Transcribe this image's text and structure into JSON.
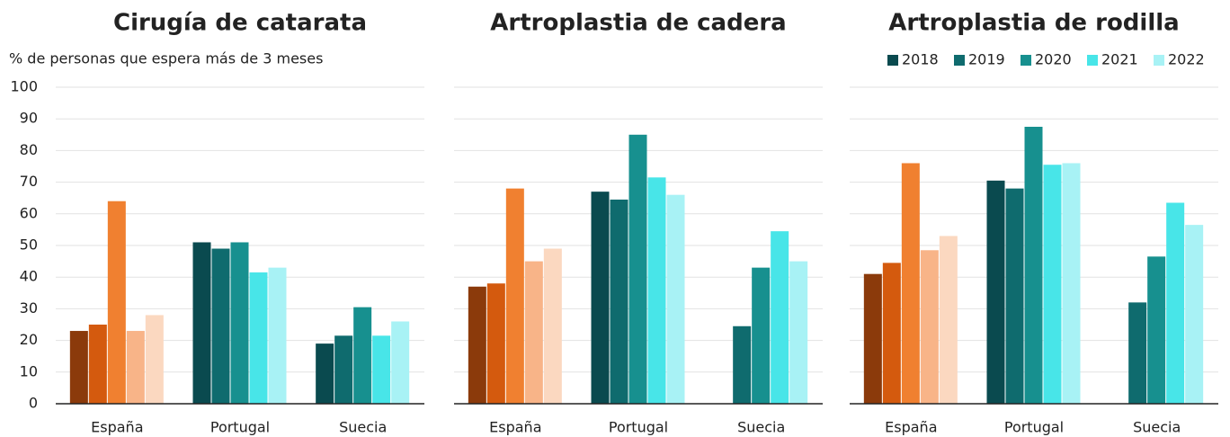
{
  "chart_data": [
    {
      "type": "bar",
      "title": "Cirugía de catarata",
      "ylabel": "% de personas que espera más de 3 meses",
      "categories": [
        "España",
        "Portugal",
        "Suecia"
      ],
      "ylim": [
        0,
        100
      ],
      "yticks": [
        0,
        10,
        20,
        30,
        40,
        50,
        60,
        70,
        80,
        90,
        100
      ],
      "grid": true,
      "show_ytick_labels": true,
      "series": [
        {
          "name": "2018",
          "color": "#0a4a4f",
          "colors": [
            "#8b3a0b",
            "#0a4a4f",
            "#0a4a4f"
          ],
          "values": [
            23,
            51,
            19
          ]
        },
        {
          "name": "2019",
          "color": "#0f6b6e",
          "colors": [
            "#d45a0e",
            "#0f6b6e",
            "#0f6b6e"
          ],
          "values": [
            25,
            49,
            21.5
          ]
        },
        {
          "name": "2020",
          "color": "#17908f",
          "colors": [
            "#f08030",
            "#17908f",
            "#17908f"
          ],
          "values": [
            64,
            51,
            30.5
          ]
        },
        {
          "name": "2021",
          "color": "#48e5e8",
          "colors": [
            "#f8b488",
            "#48e5e8",
            "#48e5e8"
          ],
          "values": [
            23,
            41.5,
            21.5
          ]
        },
        {
          "name": "2022",
          "color": "#a8f2f5",
          "colors": [
            "#fbd8c0",
            "#a8f2f5",
            "#a8f2f5"
          ],
          "values": [
            28,
            43,
            26
          ]
        }
      ]
    },
    {
      "type": "bar",
      "title": "Artroplastia de cadera",
      "categories": [
        "España",
        "Portugal",
        "Suecia"
      ],
      "ylim": [
        0,
        100
      ],
      "yticks": [
        0,
        10,
        20,
        30,
        40,
        50,
        60,
        70,
        80,
        90,
        100
      ],
      "grid": true,
      "show_ytick_labels": false,
      "series": [
        {
          "name": "2018",
          "color": "#0a4a4f",
          "colors": [
            "#8b3a0b",
            "#0a4a4f",
            "#0a4a4f"
          ],
          "values": [
            37,
            67,
            null
          ]
        },
        {
          "name": "2019",
          "color": "#0f6b6e",
          "colors": [
            "#d45a0e",
            "#0f6b6e",
            "#0f6b6e"
          ],
          "values": [
            38,
            64.5,
            24.5
          ]
        },
        {
          "name": "2020",
          "color": "#17908f",
          "colors": [
            "#f08030",
            "#17908f",
            "#17908f"
          ],
          "values": [
            68,
            85,
            43
          ]
        },
        {
          "name": "2021",
          "color": "#48e5e8",
          "colors": [
            "#f8b488",
            "#48e5e8",
            "#48e5e8"
          ],
          "values": [
            45,
            71.5,
            54.5
          ]
        },
        {
          "name": "2022",
          "color": "#a8f2f5",
          "colors": [
            "#fbd8c0",
            "#a8f2f5",
            "#a8f2f5"
          ],
          "values": [
            49,
            66,
            45
          ]
        }
      ]
    },
    {
      "type": "bar",
      "title": "Artroplastia de rodilla",
      "legend": "top-right",
      "categories": [
        "España",
        "Portugal",
        "Suecia"
      ],
      "ylim": [
        0,
        100
      ],
      "yticks": [
        0,
        10,
        20,
        30,
        40,
        50,
        60,
        70,
        80,
        90,
        100
      ],
      "grid": true,
      "show_ytick_labels": false,
      "series": [
        {
          "name": "2018",
          "color": "#0a4a4f",
          "colors": [
            "#8b3a0b",
            "#0a4a4f",
            "#0a4a4f"
          ],
          "values": [
            41,
            70.5,
            null
          ]
        },
        {
          "name": "2019",
          "color": "#0f6b6e",
          "colors": [
            "#d45a0e",
            "#0f6b6e",
            "#0f6b6e"
          ],
          "values": [
            44.5,
            68,
            32
          ]
        },
        {
          "name": "2020",
          "color": "#17908f",
          "colors": [
            "#f08030",
            "#17908f",
            "#17908f"
          ],
          "values": [
            76,
            87.5,
            46.5
          ]
        },
        {
          "name": "2021",
          "color": "#48e5e8",
          "colors": [
            "#f8b488",
            "#48e5e8",
            "#48e5e8"
          ],
          "values": [
            48.5,
            75.5,
            63.5
          ]
        },
        {
          "name": "2022",
          "color": "#a8f2f5",
          "colors": [
            "#fbd8c0",
            "#a8f2f5",
            "#a8f2f5"
          ],
          "values": [
            53,
            76,
            56.5
          ]
        }
      ]
    }
  ]
}
